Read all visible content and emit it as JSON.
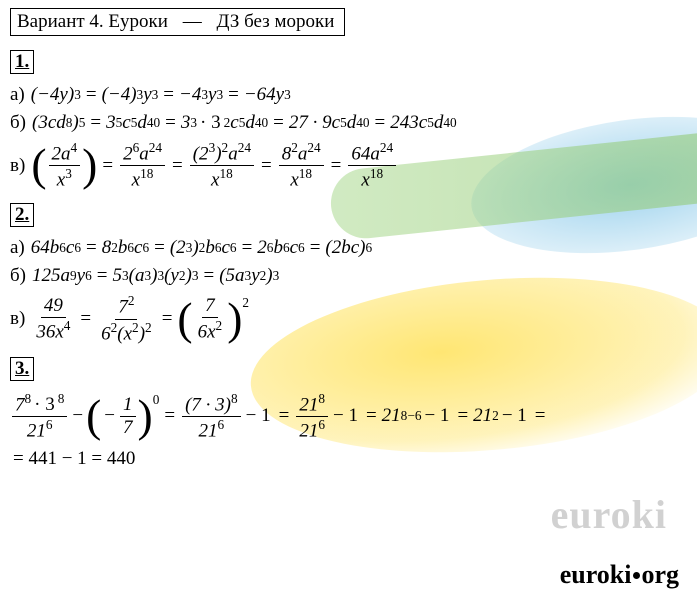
{
  "header": {
    "variant": "Вариант 4. Еуроки",
    "dash": "—",
    "tagline": "ДЗ без мороки"
  },
  "watermark": "euroki",
  "brand": {
    "text1": "euroki",
    "text2": "org"
  },
  "sections": {
    "s1": {
      "num": "1.",
      "a": {
        "lbl": "а)",
        "p1": "(−4y)",
        "e1": "3",
        "p2": "(−4)",
        "e2": "3",
        "p2b": "y",
        "e2b": "3",
        "p3": "−4",
        "e3": "3",
        "p3b": "y",
        "e3b": "3",
        "p4": "−64y",
        "e4": "3"
      },
      "b": {
        "lbl": "б)",
        "p1": "(3cd",
        "e1a": "8",
        "p1b": ")",
        "e1": "5",
        "p2": "3",
        "e2": "5",
        "p2b": "c",
        "e2b": "5",
        "p2c": "d",
        "e2c": "40",
        "p3": "3",
        "e3": "3",
        "p3m": "· 3",
        "e3m": "2",
        "p3b": "c",
        "e3b": "5",
        "p3c": "d",
        "e3c": "40",
        "p4": "27 · 9c",
        "e4b": "5",
        "p4c": "d",
        "e4c": "40",
        "p5": "243c",
        "e5b": "5",
        "p5c": "d",
        "e5c": "40"
      },
      "c": {
        "lbl": "в)",
        "f1n": "2a",
        "f1ne": "4",
        "f1d": "x",
        "f1de": "3",
        "f2n": "2",
        "f2ne": "6",
        "f2n2": "a",
        "f2n2e": "24",
        "f2d": "x",
        "f2de": "18",
        "f3n": "(2",
        "f3ne": "3",
        "f3n2": ")",
        "f3n2e": "2",
        "f3n3": "a",
        "f3n3e": "24",
        "f3d": "x",
        "f3de": "18",
        "f4n": "8",
        "f4ne": "2",
        "f4n2": "a",
        "f4n2e": "24",
        "f4d": "x",
        "f4de": "18",
        "f5n": "64a",
        "f5ne": "24",
        "f5d": "x",
        "f5de": "18"
      }
    },
    "s2": {
      "num": "2.",
      "a": {
        "lbl": "а)",
        "p1": "64b",
        "e1": "6",
        "p1b": "c",
        "e1b": "6",
        "p2": "8",
        "e2": "2",
        "p2b": "b",
        "e2b": "6",
        "p2c": "c",
        "e2c": "6",
        "p3": "(2",
        "e3": "3",
        "p3b": ")",
        "e3b": "2",
        "p3c": "b",
        "e3c": "6",
        "p3d": "c",
        "e3d": "6",
        "p4": "2",
        "e4": "6",
        "p4b": "b",
        "e4b": "6",
        "p4c": "c",
        "e4c": "6",
        "p5": "(2bc)",
        "e5": "6"
      },
      "b": {
        "lbl": "б)",
        "p1": "125a",
        "e1": "9",
        "p1b": "y",
        "e1b": "6",
        "p2": "5",
        "e2": "3",
        "p2b": "(a",
        "e2b": "3",
        "p2c": ")",
        "e2c": "3",
        "p2d": "(y",
        "e2d": "2",
        "p2e": ")",
        "e2e": "3",
        "p3": "(5a",
        "e3": "3",
        "p3b": "y",
        "e3b": "2",
        "p3c": ")",
        "e3c": "3"
      },
      "c": {
        "lbl": "в)",
        "f1n": "49",
        "f1d": "36x",
        "f1de": "4",
        "f2n": "7",
        "f2ne": "2",
        "f2d": "6",
        "f2de": "2",
        "f2d2": "(x",
        "f2d2e": "2",
        "f2d3": ")",
        "f2d3e": "2",
        "f3n": "7",
        "f3d": "6x",
        "f3de": "2",
        "oe": "2"
      }
    },
    "s3": {
      "num": "3.",
      "l1": {
        "f1n": "7",
        "f1ne": "8",
        "f1m": "· 3",
        "f1me": "8",
        "f1d": "21",
        "f1de": "6",
        "minus": "−",
        "inn": "1",
        "ind": "7",
        "innm": "−",
        "oe": "0",
        "f2n": "(7 · 3)",
        "f2ne": "8",
        "f2d": "21",
        "f2de": "6",
        "m1": "− 1",
        "f3n": "21",
        "f3ne": "8",
        "f3d": "21",
        "f3de": "6",
        "p4": "21",
        "e4": "8−6",
        "m4": "− 1",
        "p5": "21",
        "e5": "2",
        "m5": "− 1"
      },
      "l2": {
        "t": "= 441 − 1 = 440"
      }
    }
  }
}
